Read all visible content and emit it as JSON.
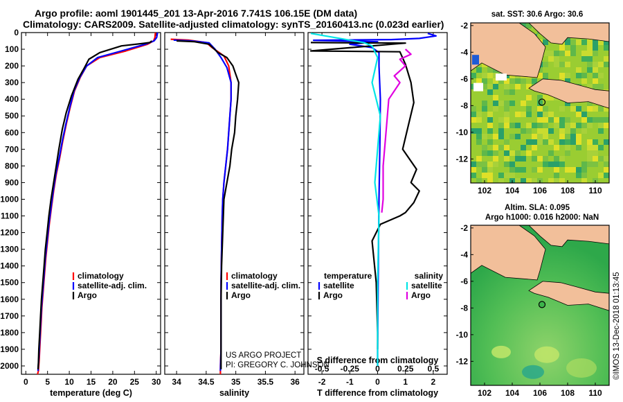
{
  "header": {
    "line1": "Argo profile: aoml 1901445_201 13-Apr-2016 7.741S 106.15E (DM data)",
    "line2": "Climatology: CARS2009. Satellite-adjusted climatology: synTS_20160413.nc (0.023d earlier)"
  },
  "colors": {
    "climatology": "#ff0000",
    "satellite": "#0000ff",
    "argo": "#000000",
    "temp_sat_diff": "#0000ff",
    "temp_argo_diff": "#000000",
    "sal_sat_diff": "#00e5e5",
    "sal_argo_diff": "#e000e0",
    "land": "#f2bf9a",
    "sst_ocean": "#9acd32",
    "sla_ocean": "#3cb44b"
  },
  "credit": {
    "project": "US ARGO PROJECT",
    "pi": "PI: GREGORY C. JOHNSON"
  },
  "watermark": "©IMOS 13-Dec-2018 01:13:45",
  "chart_data": [
    {
      "id": "temperature",
      "type": "line",
      "xlabel": "temperature (deg C)",
      "ylabel": "",
      "xlim": [
        -1,
        31
      ],
      "ylim": [
        2050,
        0
      ],
      "y_reversed": true,
      "xticks": [
        0,
        5,
        10,
        15,
        20,
        25,
        30
      ],
      "xtick_labels": [
        "0",
        "5",
        "10",
        "15",
        "20",
        "25",
        "30"
      ],
      "yticks": [
        0,
        100,
        200,
        300,
        400,
        500,
        600,
        700,
        800,
        900,
        1000,
        1100,
        1200,
        1300,
        1400,
        1500,
        1600,
        1700,
        1800,
        1900,
        2000
      ],
      "ytick_labels": [
        "0",
        "100",
        "200",
        "300",
        "400",
        "500",
        "600",
        "700",
        "800",
        "900",
        "1000",
        "1100",
        "1200",
        "1300",
        "1400",
        "1500",
        "1600",
        "1700",
        "1800",
        "1900",
        "2000"
      ],
      "legend": [
        "climatology",
        "satellite-adj. clim.",
        "Argo"
      ],
      "legend_position": "lower-middle",
      "series": [
        {
          "name": "climatology",
          "color": "#ff0000",
          "x": [
            29.8,
            29.7,
            29.4,
            28.0,
            23.0,
            17.0,
            14.0,
            12.5,
            11.2,
            10.2,
            9.3,
            8.5,
            7.8,
            7.0,
            6.4,
            5.9,
            5.4,
            5.0,
            4.6,
            4.3,
            4.0,
            3.7,
            3.5,
            3.3,
            3.1,
            2.9,
            2.7
          ],
          "y": [
            0,
            30,
            50,
            70,
            110,
            150,
            200,
            270,
            350,
            450,
            550,
            650,
            750,
            850,
            950,
            1050,
            1150,
            1250,
            1350,
            1450,
            1550,
            1650,
            1750,
            1850,
            1950,
            2030,
            2050
          ]
        },
        {
          "name": "satellite-adj. clim.",
          "color": "#0000ff",
          "x": [
            30.3,
            30.1,
            29.5,
            27.5,
            22.0,
            16.5,
            14.0,
            12.4,
            11.1,
            10.1,
            9.2,
            8.4,
            7.7,
            6.9,
            6.3,
            5.8,
            5.3,
            4.9,
            4.5,
            4.2,
            3.9,
            3.6,
            3.4,
            3.2,
            3.0,
            2.8
          ],
          "y": [
            0,
            30,
            50,
            70,
            110,
            150,
            200,
            270,
            350,
            450,
            550,
            650,
            750,
            850,
            950,
            1050,
            1150,
            1250,
            1350,
            1450,
            1550,
            1650,
            1750,
            1850,
            1950,
            2030
          ]
        },
        {
          "name": "Argo",
          "color": "#000000",
          "x": [
            29.0,
            28.5,
            27.0,
            22.0,
            17.0,
            14.5,
            13.5,
            12.0,
            10.5,
            9.3,
            8.4,
            7.6,
            7.0,
            6.4,
            5.8,
            5.3,
            4.9,
            4.5,
            4.2,
            3.9,
            3.6,
            3.4,
            3.2,
            3.0,
            2.9,
            2.8
          ],
          "y": [
            50,
            60,
            65,
            80,
            120,
            160,
            210,
            280,
            380,
            480,
            580,
            700,
            800,
            900,
            1000,
            1100,
            1200,
            1300,
            1400,
            1500,
            1600,
            1700,
            1800,
            1900,
            1980,
            2020
          ]
        }
      ]
    },
    {
      "id": "salinity",
      "type": "line",
      "xlabel": "salinity",
      "ylabel": "",
      "xlim": [
        33.8,
        36.15
      ],
      "ylim": [
        2050,
        0
      ],
      "y_reversed": true,
      "xticks": [
        34,
        34.5,
        35,
        35.5,
        36
      ],
      "xtick_labels": [
        "34",
        "34.5",
        "35",
        "35.5",
        "36"
      ],
      "legend": [
        "climatology",
        "satellite-adj. clim.",
        "Argo"
      ],
      "legend_position": "lower-right",
      "series": [
        {
          "name": "climatology",
          "color": "#ff0000",
          "x": [
            33.9,
            34.2,
            34.5,
            34.6,
            34.8,
            34.88,
            34.92,
            34.92,
            34.9,
            34.88,
            34.86,
            34.83,
            34.8,
            34.78,
            34.77,
            34.76,
            34.75,
            34.75,
            34.75,
            34.74,
            34.74
          ],
          "y": [
            40,
            45,
            60,
            90,
            140,
            200,
            300,
            400,
            500,
            600,
            700,
            800,
            900,
            1000,
            1100,
            1300,
            1500,
            1700,
            1900,
            2000,
            2050
          ]
        },
        {
          "name": "satellite-adj. clim.",
          "color": "#0000ff",
          "x": [
            33.95,
            34.25,
            34.55,
            34.65,
            34.75,
            34.85,
            34.92,
            34.92,
            34.9,
            34.88,
            34.86,
            34.83,
            34.8,
            34.78,
            34.77,
            34.76,
            34.75,
            34.75,
            34.75,
            34.74
          ],
          "y": [
            45,
            50,
            62,
            100,
            150,
            210,
            300,
            400,
            500,
            600,
            700,
            800,
            900,
            1000,
            1100,
            1300,
            1500,
            1700,
            1900,
            2030
          ]
        },
        {
          "name": "Argo",
          "color": "#000000",
          "x": [
            34.0,
            34.3,
            34.55,
            34.7,
            34.85,
            34.95,
            35.0,
            35.05,
            35.03,
            35.0,
            34.98,
            34.93,
            34.9,
            34.85,
            34.8,
            34.78,
            34.76,
            34.75,
            34.75,
            34.75
          ],
          "y": [
            50,
            55,
            70,
            120,
            150,
            200,
            250,
            300,
            400,
            500,
            600,
            700,
            800,
            900,
            1000,
            1200,
            1400,
            1600,
            1800,
            2020
          ]
        }
      ]
    },
    {
      "id": "differences",
      "type": "line",
      "title": "S difference from climatology",
      "xlabel": "T difference from climatology",
      "ylabel": "",
      "xlim": [
        -2.5,
        2.5
      ],
      "ylim": [
        2050,
        0
      ],
      "y_reversed": true,
      "xticks": [
        -2,
        -1,
        0,
        1,
        2
      ],
      "xtick_labels": [
        "-2",
        "-1",
        "0",
        "1",
        "2"
      ],
      "top_axis": {
        "ticks_in_T_units": [
          -2,
          -1,
          0,
          1,
          2
        ],
        "labels": [
          "-0.5",
          "-0.25",
          "0",
          "0.25",
          "0.5"
        ]
      },
      "legend": {
        "temperature": {
          "heading": "temperature",
          "items": [
            "satellite",
            "Argo"
          ]
        },
        "salinity": {
          "heading": "salinity",
          "items": [
            "satellite",
            "Argo"
          ]
        }
      },
      "legend_position": "lower",
      "series": [
        {
          "name": "temperature satellite",
          "color": "#0000ff",
          "x": [
            1.8,
            2.1,
            1.5,
            0.5,
            -2.3,
            0.0,
            -1.0,
            -0.2,
            0.05,
            0.05,
            0.1,
            0.08,
            0.05,
            0.02,
            0.0,
            0.0
          ],
          "y": [
            5,
            20,
            35,
            42,
            46,
            55,
            70,
            90,
            120,
            200,
            400,
            700,
            1000,
            1500,
            1900,
            2000
          ]
        },
        {
          "name": "temperature Argo",
          "color": "#000000",
          "x": [
            -2.4,
            1.0,
            -2.4,
            0.8,
            1.0,
            1.2,
            1.3,
            1.1,
            0.9,
            1.4,
            1.2,
            1.5,
            1.3,
            1.0,
            0.8,
            0.1,
            -0.2,
            -0.05,
            0.0,
            0.0
          ],
          "y": [
            60,
            63,
            110,
            115,
            190,
            300,
            420,
            560,
            700,
            820,
            900,
            950,
            1020,
            1080,
            1100,
            1150,
            1250,
            1500,
            1800,
            1900
          ]
        },
        {
          "name": "salinity satellite",
          "color": "#00e5e5",
          "x": [
            -2.4,
            -0.5,
            -0.2,
            0.0,
            -0.2,
            0.1,
            0.0,
            -0.1,
            0.05,
            0.0,
            0.0,
            0.0
          ],
          "y": [
            5,
            60,
            80,
            150,
            300,
            500,
            700,
            900,
            1100,
            1500,
            1800,
            2000
          ]
        },
        {
          "name": "salinity Argo",
          "color": "#e000e0",
          "x": [
            1.0,
            1.2,
            0.8,
            1.0,
            0.6,
            0.8,
            0.4,
            0.3,
            0.2,
            0.2,
            0.15
          ],
          "y": [
            100,
            130,
            160,
            200,
            260,
            300,
            400,
            600,
            800,
            1000,
            1080
          ]
        }
      ]
    },
    {
      "id": "sst_map",
      "type": "heatmap",
      "title": "sat. SST: 30.6 Argo: 30.6",
      "xlim": [
        101,
        111
      ],
      "ylim": [
        -13.8,
        -1.8
      ],
      "xticks": [
        102,
        104,
        106,
        108,
        110
      ],
      "xtick_labels": [
        "102",
        "104",
        "106",
        "108",
        "110"
      ],
      "yticks": [
        -2,
        -4,
        -6,
        -8,
        -10,
        -12
      ],
      "ytick_labels": [
        "-2",
        "-4",
        "-6",
        "-8",
        "-10",
        "-12"
      ],
      "marker": {
        "lon": 106.15,
        "lat": -7.741
      }
    },
    {
      "id": "sla_map",
      "type": "heatmap",
      "title": "Altim. SLA: 0.095",
      "subtitle": "Argo h1000: 0.016 h2000: NaN",
      "xlim": [
        101,
        111
      ],
      "ylim": [
        -13.8,
        -1.8
      ],
      "xticks": [
        102,
        104,
        106,
        108,
        110
      ],
      "xtick_labels": [
        "102",
        "104",
        "106",
        "108",
        "110"
      ],
      "yticks": [
        -2,
        -4,
        -6,
        -8,
        -10,
        -12
      ],
      "ytick_labels": [
        "-2",
        "-4",
        "-6",
        "-8",
        "-10",
        "-12"
      ],
      "marker": {
        "lon": 106.15,
        "lat": -7.741
      }
    }
  ]
}
